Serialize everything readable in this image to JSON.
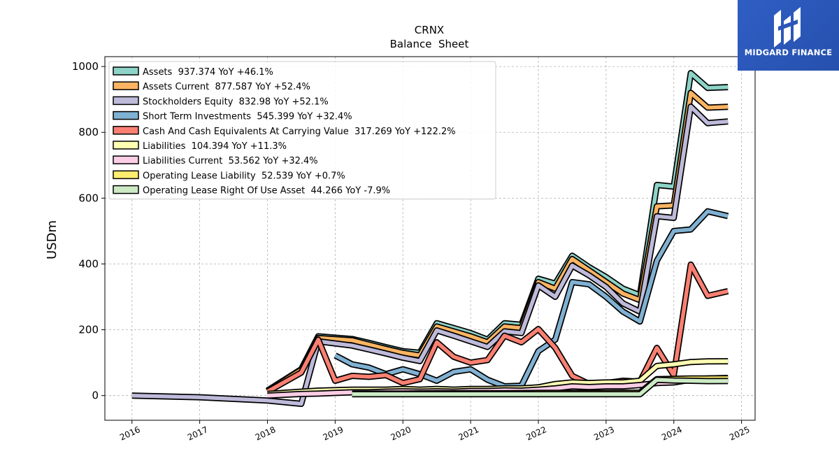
{
  "header": {
    "ticker": "CRNX",
    "subtitle": "Balance  Sheet"
  },
  "logo": {
    "text": "MIDGARD FINANCE",
    "icon": "midgard-logo-icon",
    "bg": "#2b55b8"
  },
  "chart_data": {
    "type": "line",
    "title": "CRNX",
    "subtitle": "Balance  Sheet",
    "ylabel": "USDm",
    "xlabel": "",
    "xlim": [
      2015.6,
      2025.2
    ],
    "ylim": [
      -75,
      1030
    ],
    "xticks": [
      2016,
      2017,
      2018,
      2019,
      2020,
      2021,
      2022,
      2023,
      2024,
      2025
    ],
    "xtick_labels": [
      "2016",
      "2017",
      "2018",
      "2019",
      "2020",
      "2021",
      "2022",
      "2023",
      "2024",
      "2025"
    ],
    "yticks": [
      0,
      200,
      400,
      600,
      800,
      1000
    ],
    "ytick_labels": [
      "0",
      "200",
      "400",
      "600",
      "800",
      "1000"
    ],
    "grid": true,
    "legend_position": "top-left",
    "series": [
      {
        "name": "Assets  937.374 YoY +46.1%",
        "color": "#8dd3c7",
        "points": [
          [
            2018.0,
            15
          ],
          [
            2018.5,
            80
          ],
          [
            2018.75,
            180
          ],
          [
            2019.25,
            172
          ],
          [
            2019.5,
            160
          ],
          [
            2019.75,
            147
          ],
          [
            2020.0,
            135
          ],
          [
            2020.25,
            130
          ],
          [
            2020.5,
            220
          ],
          [
            2020.75,
            205
          ],
          [
            2021.0,
            190
          ],
          [
            2021.25,
            170
          ],
          [
            2021.5,
            220
          ],
          [
            2021.75,
            215
          ],
          [
            2022.0,
            355
          ],
          [
            2022.25,
            340
          ],
          [
            2022.5,
            425
          ],
          [
            2022.75,
            390
          ],
          [
            2023.0,
            360
          ],
          [
            2023.25,
            325
          ],
          [
            2023.5,
            305
          ],
          [
            2023.75,
            640
          ],
          [
            2024.0,
            635
          ],
          [
            2024.25,
            980
          ],
          [
            2024.5,
            935
          ],
          [
            2024.8,
            937.374
          ]
        ]
      },
      {
        "name": "Assets Current  877.587 YoY +52.4%",
        "color": "#fdb462",
        "points": [
          [
            2018.0,
            14
          ],
          [
            2018.5,
            78
          ],
          [
            2018.75,
            175
          ],
          [
            2019.25,
            168
          ],
          [
            2019.5,
            155
          ],
          [
            2019.75,
            142
          ],
          [
            2020.0,
            130
          ],
          [
            2020.25,
            122
          ],
          [
            2020.5,
            210
          ],
          [
            2020.75,
            195
          ],
          [
            2021.0,
            180
          ],
          [
            2021.25,
            162
          ],
          [
            2021.5,
            210
          ],
          [
            2021.75,
            205
          ],
          [
            2022.0,
            345
          ],
          [
            2022.25,
            325
          ],
          [
            2022.5,
            415
          ],
          [
            2022.75,
            380
          ],
          [
            2023.0,
            345
          ],
          [
            2023.25,
            310
          ],
          [
            2023.5,
            290
          ],
          [
            2023.75,
            575
          ],
          [
            2024.0,
            578
          ],
          [
            2024.25,
            920
          ],
          [
            2024.5,
            875
          ],
          [
            2024.8,
            877.587
          ]
        ]
      },
      {
        "name": "Stockholders Equity  832.98 YoY +52.1%",
        "color": "#bebada",
        "points": [
          [
            2016.0,
            0
          ],
          [
            2017.0,
            -5
          ],
          [
            2018.0,
            -15
          ],
          [
            2018.5,
            -25
          ],
          [
            2018.75,
            165
          ],
          [
            2019.25,
            152
          ],
          [
            2019.5,
            140
          ],
          [
            2019.75,
            128
          ],
          [
            2020.0,
            115
          ],
          [
            2020.25,
            105
          ],
          [
            2020.5,
            198
          ],
          [
            2020.75,
            182
          ],
          [
            2021.0,
            165
          ],
          [
            2021.25,
            148
          ],
          [
            2021.5,
            195
          ],
          [
            2021.75,
            190
          ],
          [
            2022.0,
            335
          ],
          [
            2022.25,
            300
          ],
          [
            2022.5,
            395
          ],
          [
            2022.75,
            365
          ],
          [
            2023.0,
            330
          ],
          [
            2023.25,
            280
          ],
          [
            2023.5,
            255
          ],
          [
            2023.75,
            545
          ],
          [
            2024.0,
            540
          ],
          [
            2024.25,
            878
          ],
          [
            2024.5,
            828
          ],
          [
            2024.8,
            832.98
          ]
        ]
      },
      {
        "name": "Short Term Investments  545.399 YoY +32.4%",
        "color": "#80b1d3",
        "points": [
          [
            2019.0,
            122
          ],
          [
            2019.25,
            95
          ],
          [
            2019.5,
            85
          ],
          [
            2019.75,
            65
          ],
          [
            2020.0,
            80
          ],
          [
            2020.25,
            65
          ],
          [
            2020.5,
            45
          ],
          [
            2020.75,
            72
          ],
          [
            2021.0,
            80
          ],
          [
            2021.25,
            48
          ],
          [
            2021.5,
            28
          ],
          [
            2021.75,
            30
          ],
          [
            2022.0,
            135
          ],
          [
            2022.25,
            170
          ],
          [
            2022.5,
            345
          ],
          [
            2022.75,
            338
          ],
          [
            2023.0,
            300
          ],
          [
            2023.25,
            255
          ],
          [
            2023.5,
            225
          ],
          [
            2023.75,
            410
          ],
          [
            2024.0,
            500
          ],
          [
            2024.25,
            505
          ],
          [
            2024.5,
            560
          ],
          [
            2024.8,
            545.399
          ]
        ]
      },
      {
        "name": "Cash And Cash Equivalents At Carrying Value  317.269 YoY +122.2%",
        "color": "#fb8072",
        "points": [
          [
            2018.0,
            12
          ],
          [
            2018.5,
            70
          ],
          [
            2018.75,
            170
          ],
          [
            2019.0,
            45
          ],
          [
            2019.25,
            60
          ],
          [
            2019.5,
            57
          ],
          [
            2019.75,
            62
          ],
          [
            2020.0,
            38
          ],
          [
            2020.25,
            50
          ],
          [
            2020.5,
            162
          ],
          [
            2020.75,
            118
          ],
          [
            2021.0,
            100
          ],
          [
            2021.25,
            108
          ],
          [
            2021.5,
            182
          ],
          [
            2021.75,
            162
          ],
          [
            2022.0,
            202
          ],
          [
            2022.25,
            145
          ],
          [
            2022.5,
            60
          ],
          [
            2022.75,
            35
          ],
          [
            2023.0,
            38
          ],
          [
            2023.25,
            45
          ],
          [
            2023.5,
            42
          ],
          [
            2023.75,
            145
          ],
          [
            2024.0,
            62
          ],
          [
            2024.25,
            398
          ],
          [
            2024.5,
            303
          ],
          [
            2024.8,
            317.269
          ]
        ]
      },
      {
        "name": "Liabilities  104.394 YoY +11.3%",
        "color": "#ffffb3",
        "points": [
          [
            2018.0,
            5
          ],
          [
            2018.5,
            12
          ],
          [
            2018.75,
            15
          ],
          [
            2019.25,
            18
          ],
          [
            2019.5,
            18
          ],
          [
            2019.75,
            18
          ],
          [
            2020.0,
            20
          ],
          [
            2020.25,
            18
          ],
          [
            2020.5,
            20
          ],
          [
            2020.75,
            18
          ],
          [
            2021.0,
            20
          ],
          [
            2021.25,
            20
          ],
          [
            2021.5,
            22
          ],
          [
            2021.75,
            22
          ],
          [
            2022.0,
            25
          ],
          [
            2022.25,
            35
          ],
          [
            2022.5,
            40
          ],
          [
            2022.75,
            38
          ],
          [
            2023.0,
            40
          ],
          [
            2023.25,
            40
          ],
          [
            2023.5,
            45
          ],
          [
            2023.75,
            90
          ],
          [
            2024.0,
            95
          ],
          [
            2024.25,
            102
          ],
          [
            2024.5,
            104
          ],
          [
            2024.8,
            104.394
          ]
        ]
      },
      {
        "name": "Liabilities Current  53.562 YoY +32.4%",
        "color": "#fccde5",
        "points": [
          [
            2018.0,
            0
          ],
          [
            2018.5,
            5
          ],
          [
            2018.75,
            6
          ],
          [
            2019.0,
            8
          ],
          [
            2019.25,
            10
          ],
          [
            2019.5,
            10
          ],
          [
            2019.75,
            12
          ],
          [
            2020.0,
            13
          ],
          [
            2020.25,
            12
          ],
          [
            2020.5,
            13
          ],
          [
            2020.75,
            12
          ],
          [
            2021.0,
            14
          ],
          [
            2021.25,
            14
          ],
          [
            2021.5,
            16
          ],
          [
            2021.75,
            15
          ],
          [
            2022.0,
            18
          ],
          [
            2022.25,
            22
          ],
          [
            2022.5,
            28
          ],
          [
            2022.75,
            26
          ],
          [
            2023.0,
            28
          ],
          [
            2023.25,
            28
          ],
          [
            2023.5,
            32
          ],
          [
            2023.75,
            38
          ],
          [
            2024.0,
            40
          ],
          [
            2024.25,
            48
          ],
          [
            2024.5,
            52
          ],
          [
            2024.8,
            53.562
          ]
        ]
      },
      {
        "name": "Operating Lease Liability  52.539 YoY +0.7%",
        "color": "#ffed6f",
        "points": [
          [
            2019.25,
            6
          ],
          [
            2019.5,
            6
          ],
          [
            2020.0,
            6
          ],
          [
            2020.5,
            7
          ],
          [
            2021.0,
            7
          ],
          [
            2021.5,
            7
          ],
          [
            2022.0,
            8
          ],
          [
            2022.5,
            8
          ],
          [
            2023.0,
            8
          ],
          [
            2023.5,
            9
          ],
          [
            2023.75,
            50
          ],
          [
            2024.0,
            51
          ],
          [
            2024.25,
            52
          ],
          [
            2024.5,
            52
          ],
          [
            2024.8,
            52.539
          ]
        ]
      },
      {
        "name": "Operating Lease Right Of Use Asset  44.266 YoY -7.9%",
        "color": "#ccebc5",
        "points": [
          [
            2019.25,
            4
          ],
          [
            2019.5,
            4
          ],
          [
            2020.0,
            4
          ],
          [
            2020.5,
            4
          ],
          [
            2021.0,
            4
          ],
          [
            2021.5,
            4
          ],
          [
            2022.0,
            4
          ],
          [
            2022.5,
            4
          ],
          [
            2023.0,
            4
          ],
          [
            2023.5,
            4
          ],
          [
            2023.75,
            48
          ],
          [
            2024.0,
            46
          ],
          [
            2024.25,
            45
          ],
          [
            2024.5,
            44
          ],
          [
            2024.8,
            44.266
          ]
        ]
      }
    ]
  }
}
